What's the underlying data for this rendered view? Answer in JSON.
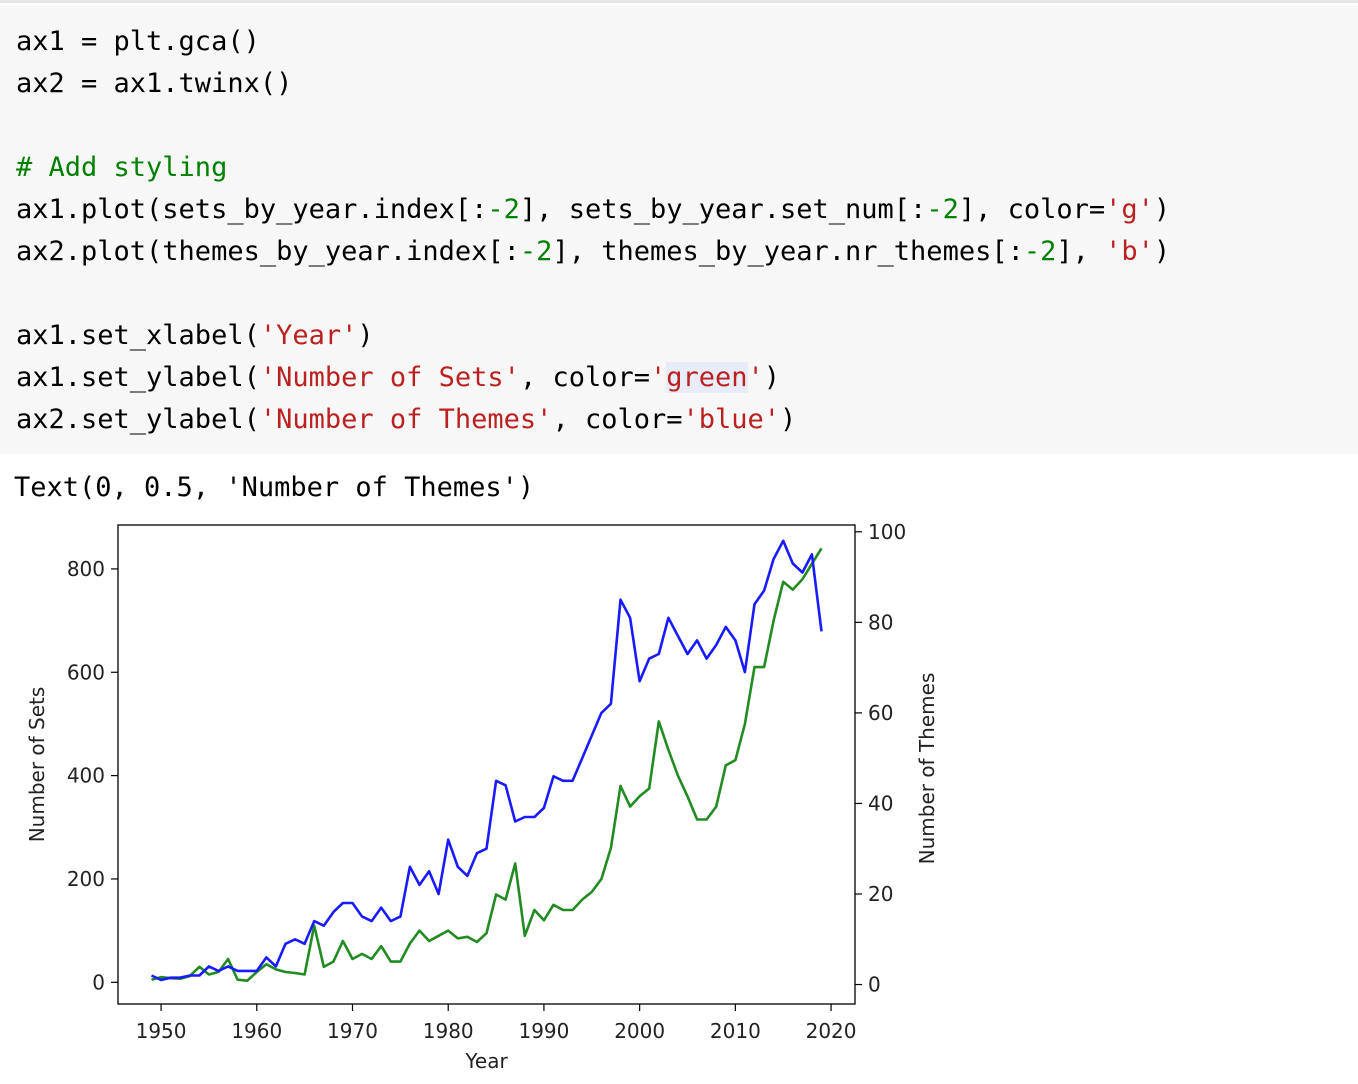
{
  "code_cell": {
    "lines": [
      [
        {
          "t": "ax1 = plt.gca()",
          "c": "kw"
        }
      ],
      [
        {
          "t": "ax2 = ax1.twinx()",
          "c": "kw"
        }
      ],
      [],
      [
        {
          "t": "# Add styling",
          "c": "cm"
        }
      ],
      [
        {
          "t": "ax1.plot(sets_by_year.index[:",
          "c": "kw"
        },
        {
          "t": "-2",
          "c": "num"
        },
        {
          "t": "], sets_by_year.set_num[:",
          "c": "kw"
        },
        {
          "t": "-2",
          "c": "num"
        },
        {
          "t": "], color=",
          "c": "kw"
        },
        {
          "t": "'g'",
          "c": "str"
        },
        {
          "t": ")",
          "c": "kw"
        }
      ],
      [
        {
          "t": "ax2.plot(themes_by_year.index[:",
          "c": "kw"
        },
        {
          "t": "-2",
          "c": "num"
        },
        {
          "t": "], themes_by_year.nr_themes[:",
          "c": "kw"
        },
        {
          "t": "-2",
          "c": "num"
        },
        {
          "t": "], ",
          "c": "kw"
        },
        {
          "t": "'b'",
          "c": "str"
        },
        {
          "t": ")",
          "c": "kw"
        }
      ],
      [],
      [
        {
          "t": "ax1.set_xlabel(",
          "c": "kw"
        },
        {
          "t": "'Year'",
          "c": "str"
        },
        {
          "t": ")",
          "c": "kw"
        }
      ],
      [
        {
          "t": "ax1.set_ylabel(",
          "c": "kw"
        },
        {
          "t": "'Number of Sets'",
          "c": "str"
        },
        {
          "t": ", color=",
          "c": "kw"
        },
        {
          "t": "'",
          "c": "str"
        },
        {
          "t": "green",
          "c": "str hl"
        },
        {
          "t": "'",
          "c": "str"
        },
        {
          "t": ")",
          "c": "kw"
        }
      ],
      [
        {
          "t": "ax2.set_ylabel(",
          "c": "kw"
        },
        {
          "t": "'Number of Themes'",
          "c": "str"
        },
        {
          "t": ", color=",
          "c": "kw"
        },
        {
          "t": "'blue'",
          "c": "str"
        },
        {
          "t": ")",
          "c": "kw"
        }
      ]
    ]
  },
  "output": {
    "text": "Text(0, 0.5, 'Number of Themes')"
  },
  "chart_data": {
    "type": "line",
    "xlabel": "Year",
    "ylabel_left": "Number of Sets",
    "ylabel_right": "Number of Themes",
    "ylabel_left_color": "#22a022",
    "ylabel_right_color": "#2b2bf5",
    "x_ticks": [
      1950,
      1960,
      1970,
      1980,
      1990,
      2000,
      2010,
      2020
    ],
    "y_left_ticks": [
      0,
      200,
      400,
      600,
      800
    ],
    "y_right_ticks": [
      0,
      20,
      40,
      60,
      80,
      100
    ],
    "xlim": [
      1945.5,
      2022.5
    ],
    "ylim_left": [
      -42,
      885
    ],
    "ylim_right": [
      -4.3,
      101.5
    ],
    "grid": false,
    "series": [
      {
        "name": "Number of Sets",
        "axis": "left",
        "color": "#228b22",
        "x": [
          1949,
          1950,
          1951,
          1952,
          1953,
          1954,
          1955,
          1956,
          1957,
          1958,
          1959,
          1960,
          1961,
          1962,
          1963,
          1964,
          1965,
          1966,
          1967,
          1968,
          1969,
          1970,
          1971,
          1972,
          1973,
          1974,
          1975,
          1976,
          1977,
          1978,
          1979,
          1980,
          1981,
          1982,
          1983,
          1984,
          1985,
          1986,
          1987,
          1988,
          1989,
          1990,
          1991,
          1992,
          1993,
          1994,
          1995,
          1996,
          1997,
          1998,
          1999,
          2000,
          2001,
          2002,
          2003,
          2004,
          2005,
          2006,
          2007,
          2008,
          2009,
          2010,
          2011,
          2012,
          2013,
          2014,
          2015,
          2016,
          2017,
          2018,
          2019
        ],
        "values": [
          5,
          10,
          8,
          7,
          12,
          30,
          15,
          20,
          45,
          5,
          3,
          20,
          35,
          25,
          20,
          18,
          15,
          110,
          30,
          40,
          80,
          45,
          55,
          45,
          70,
          40,
          40,
          75,
          100,
          80,
          90,
          100,
          85,
          88,
          78,
          95,
          170,
          160,
          230,
          90,
          140,
          120,
          150,
          140,
          140,
          160,
          175,
          200,
          260,
          380,
          340,
          360,
          375,
          505,
          450,
          400,
          360,
          315,
          315,
          340,
          420,
          430,
          500,
          610,
          610,
          700,
          775,
          760,
          780,
          810,
          840
        ]
      },
      {
        "name": "Number of Themes",
        "axis": "right",
        "color": "#1a1aff",
        "x": [
          1949,
          1950,
          1951,
          1952,
          1953,
          1954,
          1955,
          1956,
          1957,
          1958,
          1959,
          1960,
          1961,
          1962,
          1963,
          1964,
          1965,
          1966,
          1967,
          1968,
          1969,
          1970,
          1971,
          1972,
          1973,
          1974,
          1975,
          1976,
          1977,
          1978,
          1979,
          1980,
          1981,
          1982,
          1983,
          1984,
          1985,
          1986,
          1987,
          1988,
          1989,
          1990,
          1991,
          1992,
          1993,
          1994,
          1995,
          1996,
          1997,
          1998,
          1999,
          2000,
          2001,
          2002,
          2003,
          2004,
          2005,
          2006,
          2007,
          2008,
          2009,
          2010,
          2011,
          2012,
          2013,
          2014,
          2015,
          2016,
          2017,
          2018,
          2019
        ],
        "values": [
          2,
          1,
          1.5,
          1.5,
          2,
          2,
          4,
          3,
          4,
          3,
          3,
          3,
          6,
          4,
          9,
          10,
          9,
          14,
          13,
          16,
          18,
          18,
          15,
          14,
          17,
          14,
          15,
          26,
          22,
          25,
          20,
          32,
          26,
          24,
          29,
          30,
          45,
          44,
          36,
          37,
          37,
          39,
          46,
          45,
          45,
          50,
          55,
          60,
          62,
          85,
          81,
          67,
          72,
          73,
          81,
          77,
          73,
          76,
          72,
          75,
          79,
          76,
          69,
          84,
          87,
          94,
          98,
          93,
          91,
          95,
          78
        ]
      }
    ]
  }
}
